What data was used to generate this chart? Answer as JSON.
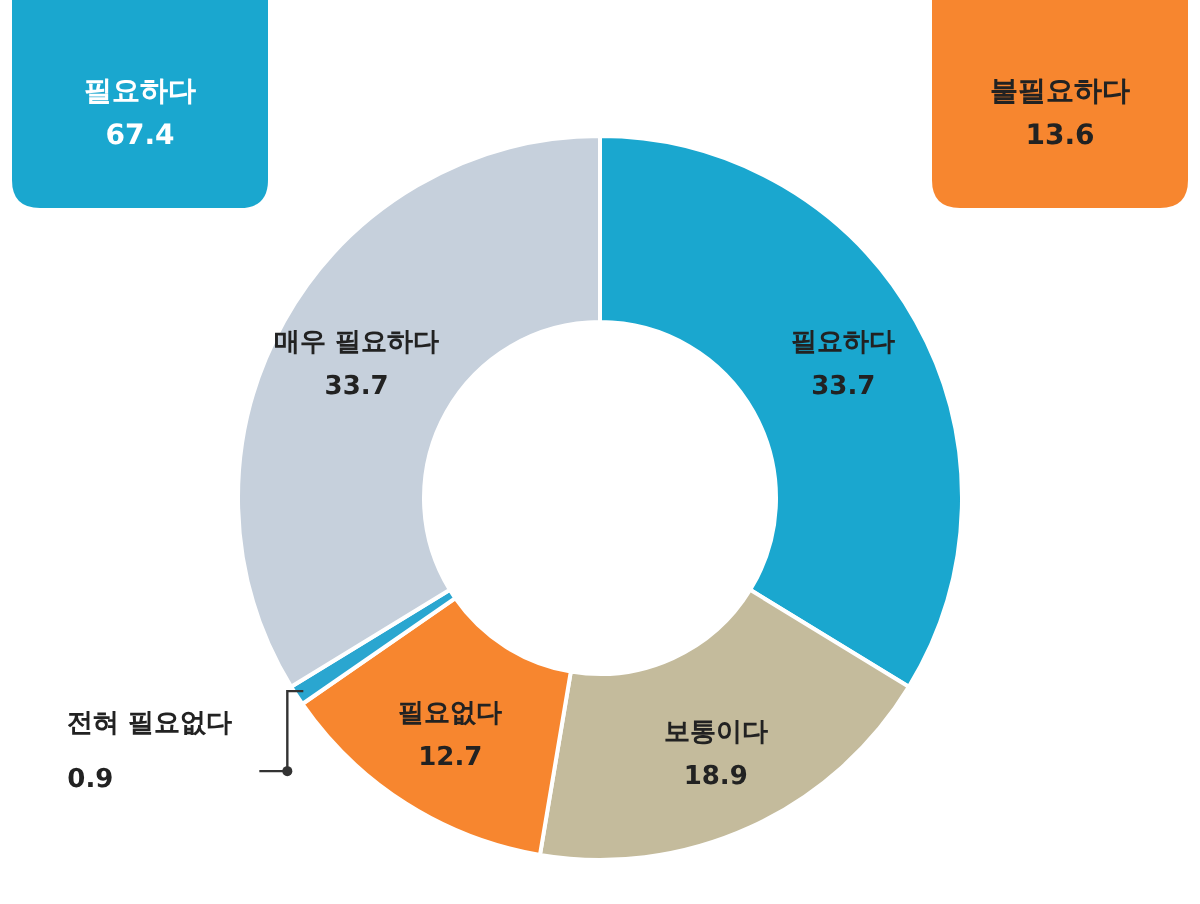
{
  "chart_data": {
    "type": "donut",
    "categories": [
      "필요하다",
      "보통이다",
      "필요없다",
      "전혀 필요없다",
      "매우 필요하다"
    ],
    "values": [
      33.7,
      18.9,
      12.7,
      0.9,
      33.7
    ],
    "colors": [
      "#1aa7cf",
      "#c4bb9c",
      "#f7862f",
      "#2aa6d0",
      "#c6d0dc"
    ],
    "data_labels": true,
    "legend": false,
    "annotations": [
      "필요하다 67.4",
      "불필요하다 13.6"
    ]
  }
}
